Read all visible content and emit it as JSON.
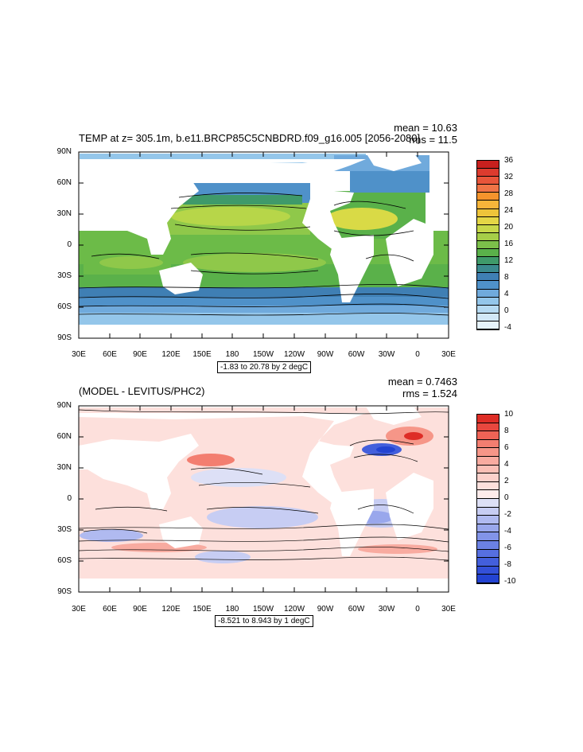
{
  "panels": [
    {
      "title": "TEMP at z= 305.1m, b.e11.BRCP85C5CNBDRD.f09_g16.005 [2056-2080]",
      "mean_text": "mean = 10.63",
      "rms_text": "rms = 11.5",
      "lat_labels": [
        "90N",
        "60N",
        "30N",
        "0",
        "30S",
        "60S",
        "90S"
      ],
      "lon_labels": [
        "30E",
        "60E",
        "90E",
        "120E",
        "150E",
        "180",
        "150W",
        "120W",
        "90W",
        "60W",
        "30W",
        "0",
        "30E"
      ],
      "range_text": "-1.83 to 20.78 by 2 degC",
      "colorbar_labels": [
        "36",
        "32",
        "28",
        "24",
        "20",
        "16",
        "12",
        "8",
        "4",
        "0",
        "-4"
      ],
      "colorbar_colors": [
        "#c8201e",
        "#dc3b2e",
        "#e8553a",
        "#f07446",
        "#f5942c",
        "#f7b53a",
        "#eec43a",
        "#e4d646",
        "#c8d84a",
        "#a6ce48",
        "#7cc04a",
        "#5ab14a",
        "#3f9a6a",
        "#3b8a8e",
        "#3f7fb4",
        "#4f91c9",
        "#70aadc",
        "#94c6ea",
        "#b6daf2",
        "#d2e8f7",
        "#e6f3fb"
      ]
    },
    {
      "title": "(MODEL - LEVITUS/PHC2)",
      "mean_text": "mean = 0.7463",
      "rms_text": "rms = 1.524",
      "lat_labels": [
        "90N",
        "60N",
        "30N",
        "0",
        "30S",
        "60S",
        "90S"
      ],
      "lon_labels": [
        "30E",
        "60E",
        "90E",
        "120E",
        "150E",
        "180",
        "150W",
        "120W",
        "90W",
        "60W",
        "30W",
        "0",
        "30E"
      ],
      "range_text": "-8.521 to 8.943 by 1 degC",
      "colorbar_labels": [
        "10",
        "8",
        "6",
        "4",
        "2",
        "0",
        "-2",
        "-4",
        "-6",
        "-8",
        "-10"
      ],
      "colorbar_colors": [
        "#de2d26",
        "#e8473e",
        "#ef6356",
        "#f37e70",
        "#f69688",
        "#f8aba0",
        "#fabfb6",
        "#fcd1cb",
        "#fde0dc",
        "#feeceb",
        "#dde0f6",
        "#c7cdf3",
        "#b0baf0",
        "#99a7ec",
        "#8294e8",
        "#6b81e4",
        "#566fe0",
        "#435fdc",
        "#3350d8",
        "#2343d2"
      ]
    }
  ]
}
